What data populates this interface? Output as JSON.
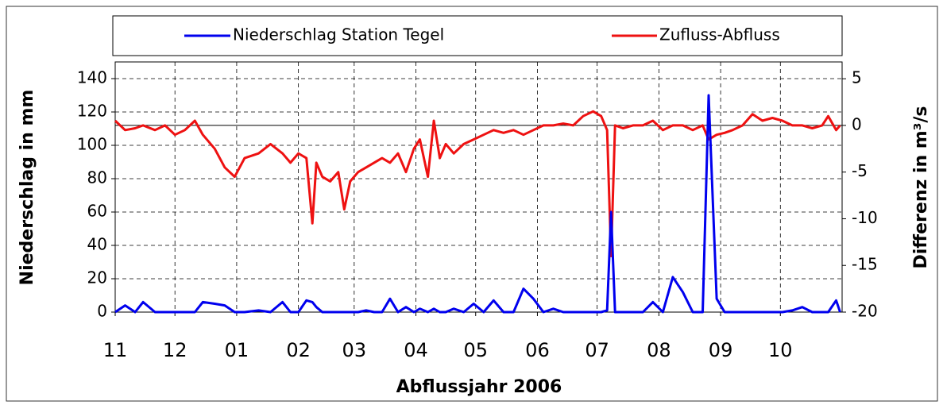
{
  "chart_data": {
    "type": "line",
    "x_label": "Abflussjahr 2006",
    "y_label": "Niederschlag in mm",
    "y2_label": "Differenz in m³/s",
    "x": [
      0,
      5,
      10,
      14,
      20,
      25,
      30,
      35,
      40,
      44,
      50,
      55,
      60,
      65,
      72,
      78,
      84,
      88,
      92,
      96,
      99,
      101,
      104,
      108,
      112,
      115,
      118,
      122,
      126,
      130,
      134,
      138,
      142,
      146,
      150,
      153,
      157,
      160,
      163,
      166,
      170,
      175,
      180,
      185,
      190,
      195,
      200,
      205,
      210,
      215,
      220,
      225,
      230,
      235,
      240,
      244,
      247,
      249,
      251,
      255,
      260,
      265,
      270,
      275,
      280,
      285,
      290,
      295,
      298,
      302,
      306,
      310,
      315,
      320,
      325,
      330,
      335,
      340,
      345,
      350,
      355,
      358,
      362,
      364
    ],
    "series": [
      {
        "name": "Niederschlag Station Tegel",
        "color": "#0000ee",
        "values": [
          0,
          4,
          0,
          6,
          0,
          0,
          0,
          0,
          0,
          6,
          5,
          4,
          0,
          0,
          1,
          0,
          6,
          0,
          0,
          7,
          6,
          3,
          0,
          0,
          0,
          0,
          0,
          0,
          1,
          0,
          0,
          8,
          0,
          3,
          0,
          2,
          0,
          2,
          0,
          0,
          2,
          0,
          5,
          0,
          7,
          0,
          0,
          14,
          8,
          0,
          2,
          0,
          0,
          0,
          0,
          0,
          1,
          60,
          0,
          0,
          0,
          0,
          6,
          0,
          21,
          12,
          0,
          0,
          130,
          8,
          0,
          0,
          0,
          0,
          0,
          0,
          0,
          1,
          3,
          0,
          0,
          0,
          7,
          0
        ]
      },
      {
        "name": "Zufluss-Abfluss",
        "color": "#ee1111",
        "axis": "y2",
        "values": [
          0.5,
          -0.5,
          -0.3,
          0,
          -0.5,
          0,
          -1,
          -0.5,
          0.5,
          -1,
          -2.5,
          -4.5,
          -5.5,
          -3.5,
          -3,
          -2,
          -3,
          -4,
          -3,
          -3.5,
          -10.5,
          -4,
          -5.5,
          -6,
          -5,
          -9,
          -6,
          -5,
          -4.5,
          -4,
          -3.5,
          -4,
          -3,
          -5,
          -2.5,
          -1.5,
          -5.5,
          0.5,
          -3.5,
          -2,
          -3,
          -2,
          -1.5,
          -1,
          -0.5,
          -0.8,
          -0.5,
          -1,
          -0.5,
          0,
          0,
          0.2,
          0,
          1,
          1.5,
          1,
          -0.5,
          -14,
          0,
          -0.3,
          0,
          0,
          0.5,
          -0.5,
          0,
          0,
          -0.5,
          0,
          -1.5,
          -1,
          -0.8,
          -0.5,
          0,
          1.2,
          0.5,
          0.8,
          0.5,
          0,
          0,
          -0.3,
          0,
          1,
          -0.5,
          0
        ]
      }
    ],
    "xlim": [
      0,
      365
    ],
    "xticks": [
      {
        "value": 0,
        "label": "11"
      },
      {
        "value": 30,
        "label": "12"
      },
      {
        "value": 61,
        "label": "01"
      },
      {
        "value": 92,
        "label": "02"
      },
      {
        "value": 120,
        "label": "03"
      },
      {
        "value": 151,
        "label": "04"
      },
      {
        "value": 181,
        "label": "05"
      },
      {
        "value": 212,
        "label": "06"
      },
      {
        "value": 242,
        "label": "07"
      },
      {
        "value": 273,
        "label": "08"
      },
      {
        "value": 304,
        "label": "09"
      },
      {
        "value": 334,
        "label": "10"
      }
    ],
    "ylim": [
      0,
      150
    ],
    "yticks": [
      0,
      20,
      40,
      60,
      80,
      100,
      120,
      140
    ],
    "y2lim": [
      -20,
      6.8
    ],
    "y2ticks": [
      5,
      0,
      -5,
      -10,
      -15,
      -20
    ],
    "grid": true
  }
}
